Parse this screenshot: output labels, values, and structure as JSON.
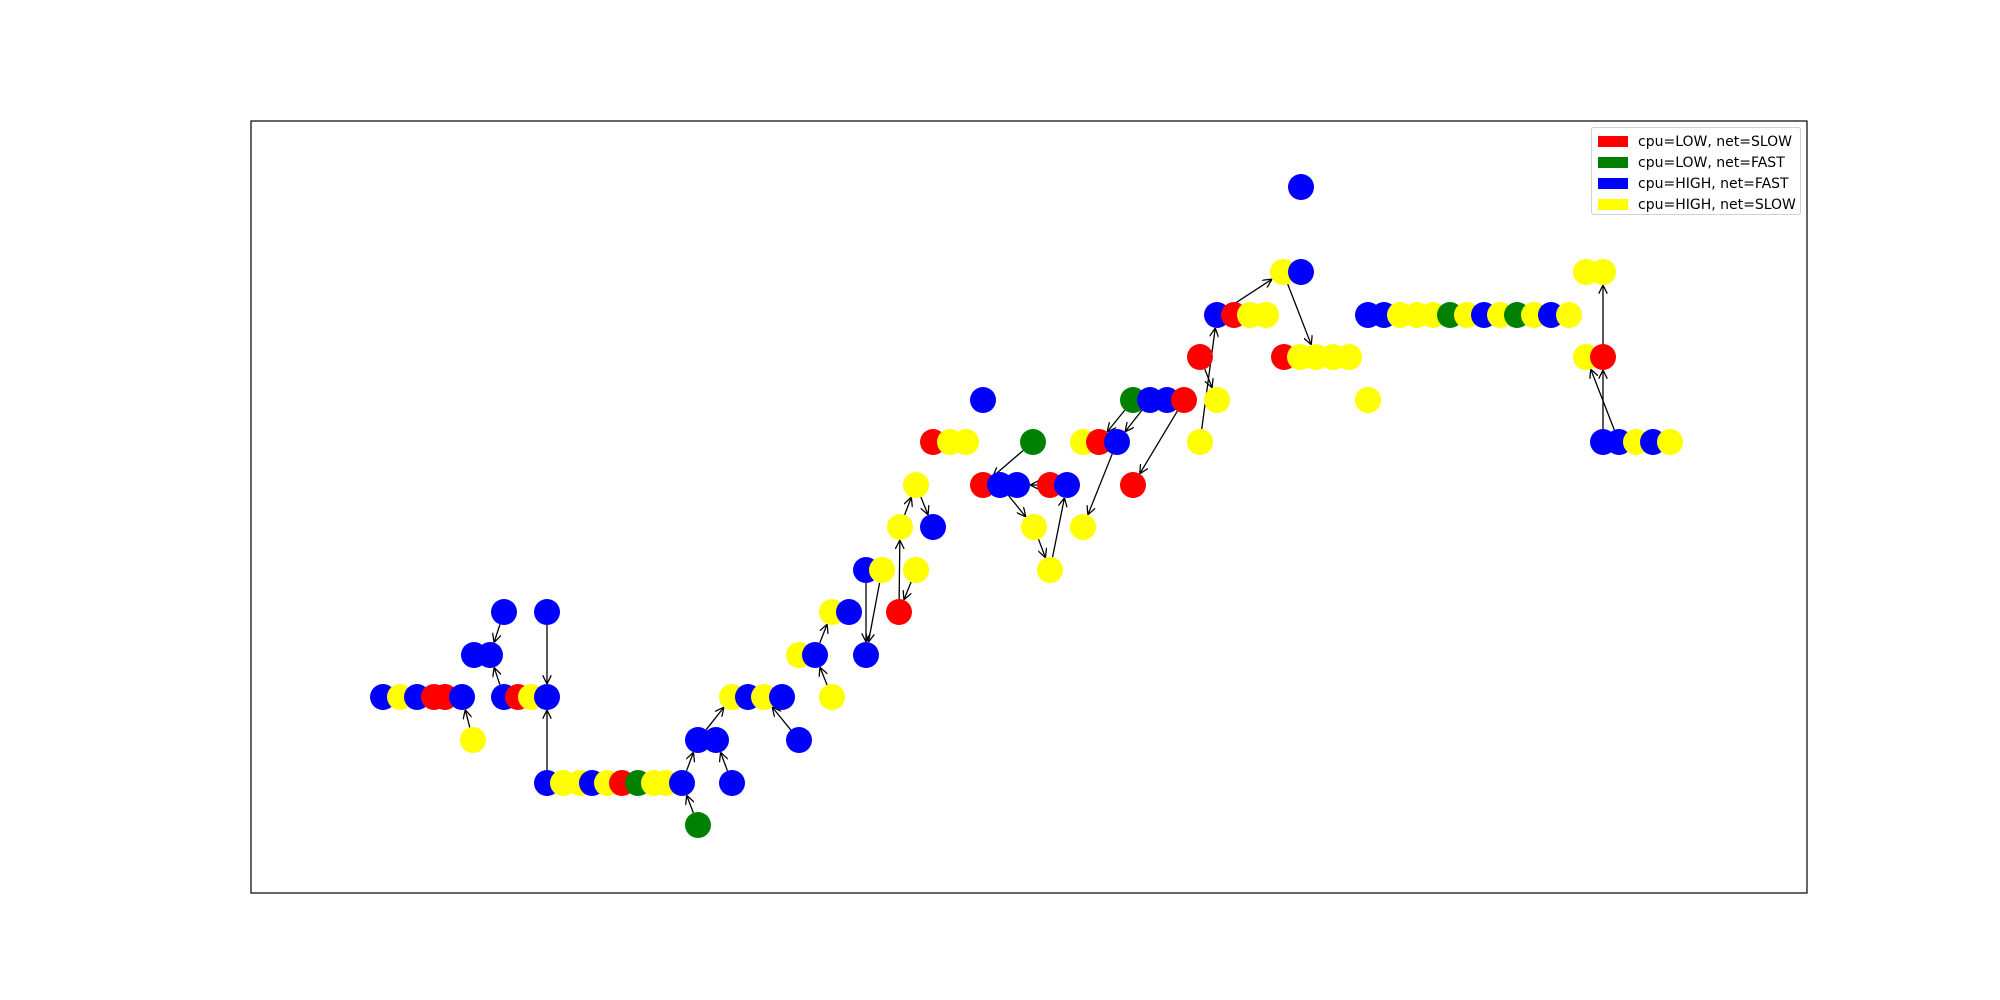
{
  "legend": {
    "items": [
      {
        "label": "cpu=LOW, net=SLOW",
        "color": "#ff0000"
      },
      {
        "label": "cpu=LOW, net=FAST",
        "color": "#008000"
      },
      {
        "label": "cpu=HIGH, net=FAST",
        "color": "#0000ff"
      },
      {
        "label": "cpu=HIGH, net=SLOW",
        "color": "#ffff00"
      }
    ]
  }
}
